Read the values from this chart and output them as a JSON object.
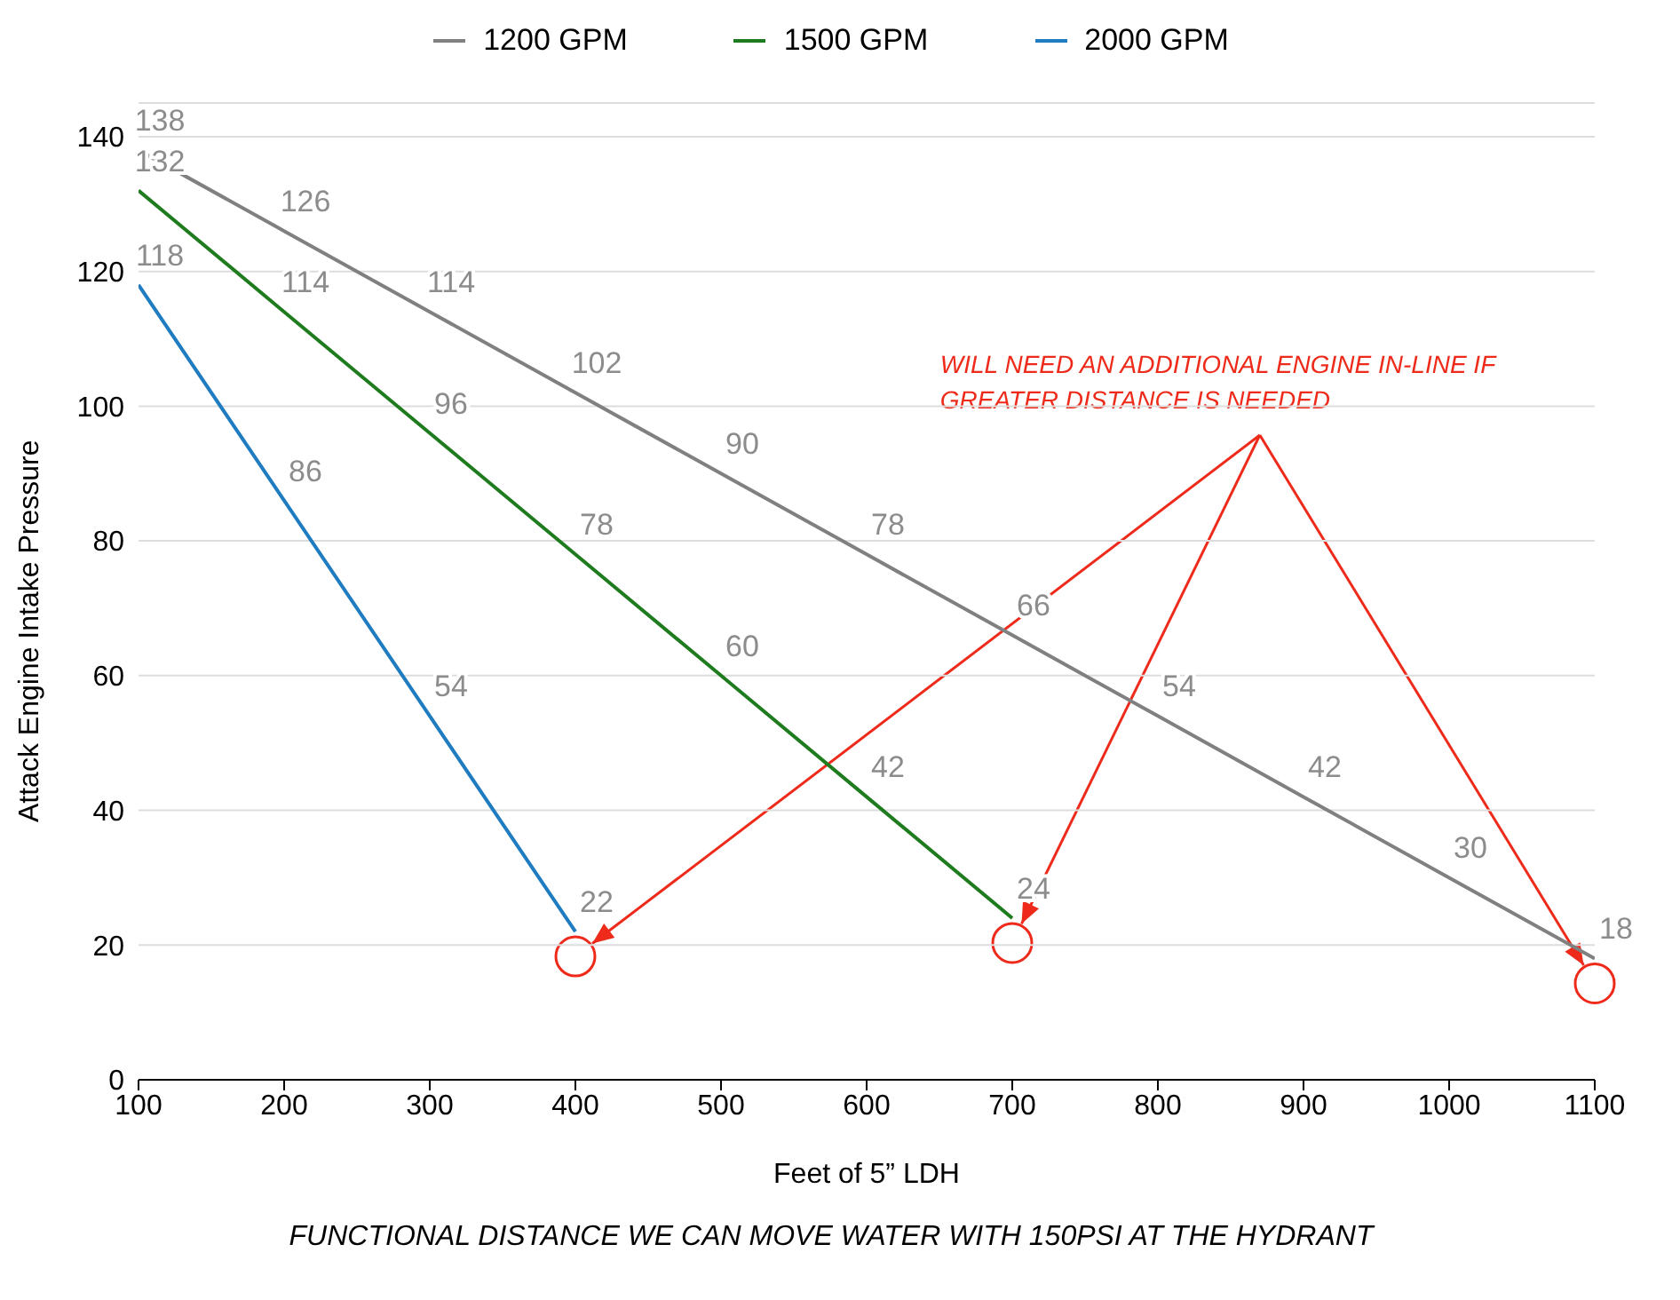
{
  "chart_data": {
    "type": "line",
    "xlabel": "Feet of 5” LDH",
    "ylabel": "Attack Engine Intake Pressure",
    "x": [
      100,
      200,
      300,
      400,
      500,
      600,
      700,
      800,
      900,
      1000,
      1100
    ],
    "series": [
      {
        "name": "1200 GPM",
        "color": "#808080",
        "values": [
          138,
          126,
          114,
          102,
          90,
          78,
          66,
          54,
          42,
          30,
          18
        ]
      },
      {
        "name": "1500 GPM",
        "color": "#1e7b1e",
        "values": [
          132,
          114,
          96,
          78,
          60,
          42,
          24,
          null,
          null,
          null,
          null
        ]
      },
      {
        "name": "2000 GPM",
        "color": "#1f7cc0",
        "values": [
          118,
          86,
          54,
          22,
          null,
          null,
          null,
          null,
          null,
          null,
          null
        ]
      }
    ],
    "xlim": [
      100,
      1100
    ],
    "xticks": [
      100,
      200,
      300,
      400,
      500,
      600,
      700,
      800,
      900,
      1000,
      1100
    ],
    "ylim": [
      0,
      145
    ],
    "yticks": [
      0,
      20,
      40,
      60,
      80,
      100,
      120,
      140
    ],
    "grid": "y",
    "legend": "top",
    "marker": "none",
    "line_style": "solid",
    "data_labels": true,
    "annotations": [
      "WILL NEED AN ADDITIONAL ENGINE IN-LINE IF GREATER DISTANCE IS NEEDED",
      "FUNCTIONAL DISTANCE WE CAN MOVE WATER WITH 150PSI AT THE HYDRANT"
    ]
  }
}
